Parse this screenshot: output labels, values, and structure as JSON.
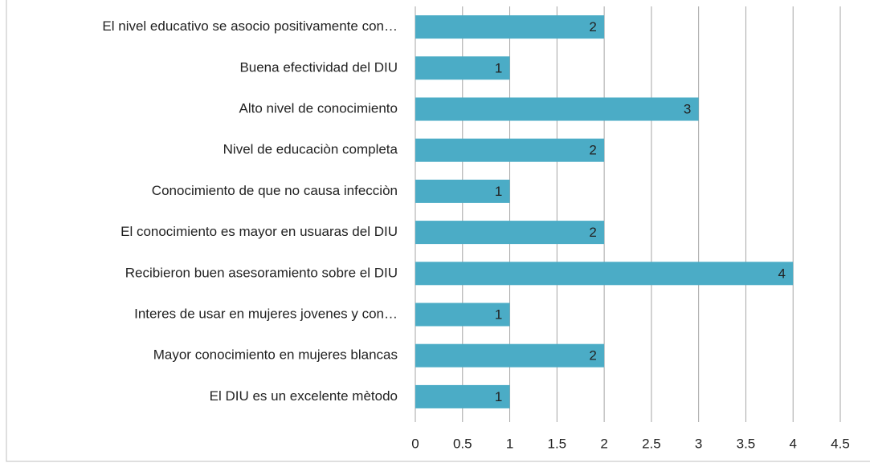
{
  "chart_data": {
    "type": "bar",
    "orientation": "horizontal",
    "categories": [
      "El nivel educativo se asocio positivamente con…",
      "Buena efectividad del DIU",
      "Alto nivel de conocimiento",
      "Nivel de educaciòn completa",
      "Conocimiento de que no causa infecciòn",
      "El conocimiento es mayor en usuaras del DIU",
      "Recibieron buen asesoramiento sobre el DIU",
      "Interes de usar en mujeres jovenes y con…",
      "Mayor conocimiento en mujeres blancas",
      "El DIU es un excelente mètodo"
    ],
    "values": [
      2,
      1,
      3,
      2,
      1,
      2,
      4,
      1,
      2,
      1
    ],
    "color": "#4bacc6",
    "xlim": [
      0,
      4.5
    ],
    "xticks": [
      0,
      0.5,
      1,
      1.5,
      2,
      2.5,
      3,
      3.5,
      4,
      4.5
    ],
    "grid": true
  }
}
